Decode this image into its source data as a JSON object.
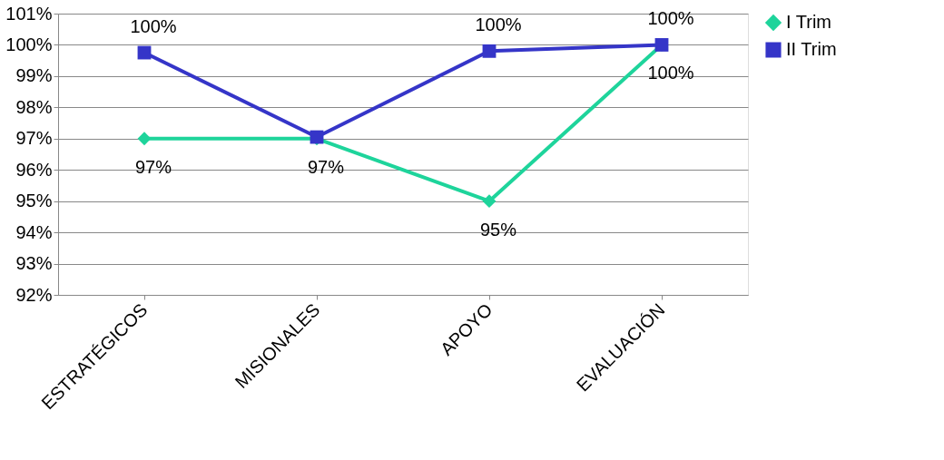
{
  "chart_data": {
    "type": "line",
    "categories": [
      "ESTRATÉGICOS",
      "MISIONALES",
      "APOYO",
      "EVALUACIÓN"
    ],
    "series": [
      {
        "name": "I Trim",
        "color": "#1ed49b",
        "marker": "diamond",
        "values": [
          97,
          97,
          95,
          100
        ],
        "value_labels": [
          "97%",
          "97%",
          "95%",
          "100%"
        ]
      },
      {
        "name": "II Trim",
        "color": "#3535c8",
        "marker": "square",
        "values": [
          99.75,
          97.05,
          99.8,
          100
        ],
        "value_labels": [
          "100%",
          null,
          "100%",
          "100%"
        ]
      }
    ],
    "ylim": [
      92,
      101
    ],
    "yticks": [
      {
        "value": 92,
        "label": "92%"
      },
      {
        "value": 93,
        "label": "93%"
      },
      {
        "value": 94,
        "label": "94%"
      },
      {
        "value": 95,
        "label": "95%"
      },
      {
        "value": 96,
        "label": "96%"
      },
      {
        "value": 97,
        "label": "97%"
      },
      {
        "value": 98,
        "label": "98%"
      },
      {
        "value": 99,
        "label": "99%"
      },
      {
        "value": 100,
        "label": "100%"
      },
      {
        "value": 101,
        "label": "101%"
      }
    ],
    "grid": "y",
    "legend": "right",
    "line_style": "solid"
  }
}
